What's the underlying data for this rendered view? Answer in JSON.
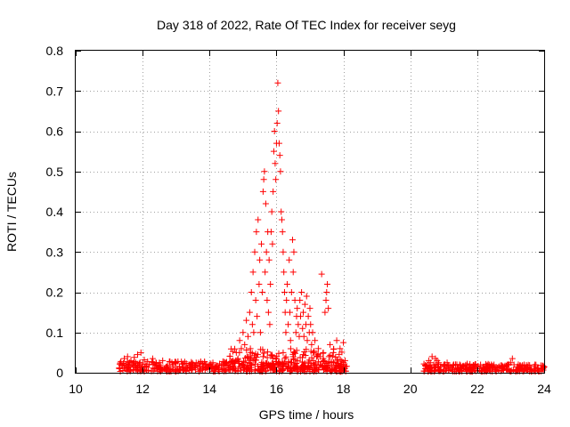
{
  "chart_data": {
    "type": "scatter",
    "title": "Day 318 of 2022, Rate Of TEC Index for receiver seyg",
    "xlabel": "GPS time / hours",
    "ylabel": "ROTI / TECUs",
    "xlim": [
      10,
      24
    ],
    "ylim": [
      0,
      0.8
    ],
    "xticks": [
      10,
      12,
      14,
      16,
      18,
      20,
      22,
      24
    ],
    "xtick_labels": [
      "10",
      "12",
      "14",
      "16",
      "18",
      "20",
      "22",
      "24"
    ],
    "yticks": [
      0,
      0.1,
      0.2,
      0.3,
      0.4,
      0.5,
      0.6,
      0.7,
      0.8
    ],
    "ytick_labels": [
      "0",
      "0.1",
      "0.2",
      "0.3",
      "0.4",
      "0.5",
      "0.6",
      "0.7",
      "0.8"
    ],
    "grid": true,
    "marker": "+",
    "color": "#ff0000",
    "series": [
      {
        "name": "ROTI",
        "points": [
          [
            11.3,
            0.012
          ],
          [
            11.35,
            0.028
          ],
          [
            11.4,
            0.018
          ],
          [
            11.45,
            0.035
          ],
          [
            11.5,
            0.022
          ],
          [
            11.55,
            0.04
          ],
          [
            11.6,
            0.015
          ],
          [
            11.65,
            0.03
          ],
          [
            11.7,
            0.02
          ],
          [
            11.75,
            0.038
          ],
          [
            11.8,
            0.025
          ],
          [
            11.85,
            0.045
          ],
          [
            11.9,
            0.018
          ],
          [
            11.95,
            0.05
          ],
          [
            12.0,
            0.022
          ],
          [
            12.05,
            0.032
          ],
          [
            12.1,
            0.015
          ],
          [
            12.15,
            0.028
          ],
          [
            12.2,
            0.02
          ],
          [
            12.3,
            0.035
          ],
          [
            12.4,
            0.018
          ],
          [
            12.5,
            0.025
          ],
          [
            12.6,
            0.03
          ],
          [
            12.7,
            0.015
          ],
          [
            12.8,
            0.028
          ],
          [
            12.9,
            0.02
          ],
          [
            13.0,
            0.025
          ],
          [
            13.1,
            0.015
          ],
          [
            13.2,
            0.022
          ],
          [
            13.3,
            0.012
          ],
          [
            13.4,
            0.02
          ],
          [
            13.5,
            0.018
          ],
          [
            13.6,
            0.025
          ],
          [
            13.7,
            0.015
          ],
          [
            13.8,
            0.022
          ],
          [
            13.9,
            0.012
          ],
          [
            14.0,
            0.02
          ],
          [
            14.1,
            0.025
          ],
          [
            14.2,
            0.015
          ],
          [
            14.3,
            0.022
          ],
          [
            14.4,
            0.028
          ],
          [
            14.5,
            0.018
          ],
          [
            14.6,
            0.025
          ],
          [
            14.7,
            0.03
          ],
          [
            14.8,
            0.05
          ],
          [
            14.85,
            0.035
          ],
          [
            14.9,
            0.08
          ],
          [
            14.95,
            0.06
          ],
          [
            15.0,
            0.1
          ],
          [
            15.05,
            0.07
          ],
          [
            15.1,
            0.13
          ],
          [
            15.12,
            0.04
          ],
          [
            15.15,
            0.09
          ],
          [
            15.2,
            0.15
          ],
          [
            15.22,
            0.06
          ],
          [
            15.25,
            0.2
          ],
          [
            15.28,
            0.12
          ],
          [
            15.3,
            0.25
          ],
          [
            15.32,
            0.1
          ],
          [
            15.35,
            0.3
          ],
          [
            15.38,
            0.18
          ],
          [
            15.4,
            0.35
          ],
          [
            15.42,
            0.14
          ],
          [
            15.45,
            0.38
          ],
          [
            15.48,
            0.22
          ],
          [
            15.5,
            0.28
          ],
          [
            15.52,
            0.1
          ],
          [
            15.55,
            0.32
          ],
          [
            15.58,
            0.2
          ],
          [
            15.6,
            0.45
          ],
          [
            15.62,
            0.48
          ],
          [
            15.64,
            0.5
          ],
          [
            15.66,
            0.25
          ],
          [
            15.68,
            0.42
          ],
          [
            15.7,
            0.3
          ],
          [
            15.72,
            0.18
          ],
          [
            15.74,
            0.35
          ],
          [
            15.76,
            0.15
          ],
          [
            15.78,
            0.28
          ],
          [
            15.8,
            0.12
          ],
          [
            15.82,
            0.22
          ],
          [
            15.84,
            0.35
          ],
          [
            15.86,
            0.4
          ],
          [
            15.88,
            0.32
          ],
          [
            15.9,
            0.45
          ],
          [
            15.92,
            0.55
          ],
          [
            15.94,
            0.6
          ],
          [
            15.96,
            0.52
          ],
          [
            15.98,
            0.48
          ],
          [
            16.0,
            0.57
          ],
          [
            16.02,
            0.62
          ],
          [
            16.04,
            0.72
          ],
          [
            16.06,
            0.65
          ],
          [
            16.08,
            0.57
          ],
          [
            16.1,
            0.54
          ],
          [
            16.12,
            0.5
          ],
          [
            16.14,
            0.4
          ],
          [
            16.16,
            0.38
          ],
          [
            16.18,
            0.35
          ],
          [
            16.2,
            0.3
          ],
          [
            16.22,
            0.25
          ],
          [
            16.24,
            0.2
          ],
          [
            16.26,
            0.15
          ],
          [
            16.28,
            0.1
          ],
          [
            16.3,
            0.18
          ],
          [
            16.32,
            0.22
          ],
          [
            16.35,
            0.12
          ],
          [
            16.38,
            0.28
          ],
          [
            16.4,
            0.15
          ],
          [
            16.42,
            0.08
          ],
          [
            16.45,
            0.2
          ],
          [
            16.48,
            0.33
          ],
          [
            16.5,
            0.25
          ],
          [
            16.52,
            0.3
          ],
          [
            16.55,
            0.18
          ],
          [
            16.58,
            0.1
          ],
          [
            16.6,
            0.14
          ],
          [
            16.62,
            0.16
          ],
          [
            16.65,
            0.12
          ],
          [
            16.68,
            0.09
          ],
          [
            16.7,
            0.18
          ],
          [
            16.72,
            0.14
          ],
          [
            16.75,
            0.2
          ],
          [
            16.78,
            0.11
          ],
          [
            16.8,
            0.15
          ],
          [
            16.82,
            0.09
          ],
          [
            16.85,
            0.17
          ],
          [
            16.88,
            0.12
          ],
          [
            16.9,
            0.19
          ],
          [
            16.92,
            0.08
          ],
          [
            16.95,
            0.14
          ],
          [
            16.98,
            0.1
          ],
          [
            17.0,
            0.16
          ],
          [
            17.02,
            0.12
          ],
          [
            17.05,
            0.07
          ],
          [
            17.08,
            0.1
          ],
          [
            17.1,
            0.05
          ],
          [
            17.15,
            0.08
          ],
          [
            17.2,
            0.04
          ],
          [
            17.25,
            0.06
          ],
          [
            17.3,
            0.04
          ],
          [
            17.35,
            0.245
          ],
          [
            17.4,
            0.05
          ],
          [
            17.45,
            0.15
          ],
          [
            17.48,
            0.18
          ],
          [
            17.5,
            0.2
          ],
          [
            17.52,
            0.22
          ],
          [
            17.55,
            0.16
          ],
          [
            17.6,
            0.07
          ],
          [
            17.7,
            0.05
          ],
          [
            17.8,
            0.08
          ],
          [
            17.9,
            0.06
          ],
          [
            18.0,
            0.075
          ],
          [
            15.0,
            0.02
          ],
          [
            15.3,
            0.03
          ],
          [
            15.6,
            0.04
          ],
          [
            15.9,
            0.035
          ],
          [
            16.2,
            0.05
          ],
          [
            16.5,
            0.04
          ],
          [
            16.8,
            0.045
          ],
          [
            17.1,
            0.03
          ],
          [
            17.4,
            0.035
          ],
          [
            17.7,
            0.025
          ],
          [
            18.0,
            0.02
          ],
          [
            18.05,
            0.03
          ],
          [
            20.45,
            0.01
          ],
          [
            20.5,
            0.02
          ],
          [
            20.55,
            0.03
          ],
          [
            20.6,
            0.025
          ],
          [
            20.65,
            0.04
          ],
          [
            20.7,
            0.02
          ],
          [
            20.75,
            0.035
          ],
          [
            20.8,
            0.03
          ],
          [
            20.85,
            0.025
          ],
          [
            20.9,
            0.015
          ],
          [
            21.0,
            0.02
          ],
          [
            21.1,
            0.025
          ],
          [
            21.2,
            0.015
          ],
          [
            21.3,
            0.02
          ],
          [
            21.4,
            0.012
          ],
          [
            21.5,
            0.018
          ],
          [
            21.6,
            0.015
          ],
          [
            21.7,
            0.022
          ],
          [
            21.8,
            0.012
          ],
          [
            21.9,
            0.018
          ],
          [
            22.0,
            0.015
          ],
          [
            22.1,
            0.02
          ],
          [
            22.2,
            0.012
          ],
          [
            22.3,
            0.018
          ],
          [
            22.4,
            0.015
          ],
          [
            22.5,
            0.02
          ],
          [
            22.6,
            0.012
          ],
          [
            22.7,
            0.018
          ],
          [
            22.8,
            0.015
          ],
          [
            22.9,
            0.02
          ],
          [
            23.0,
            0.025
          ],
          [
            23.05,
            0.035
          ],
          [
            23.1,
            0.02
          ],
          [
            23.2,
            0.015
          ],
          [
            23.3,
            0.012
          ],
          [
            23.4,
            0.018
          ],
          [
            23.5,
            0.015
          ],
          [
            23.6,
            0.01
          ],
          [
            23.7,
            0.015
          ],
          [
            23.8,
            0.012
          ],
          [
            23.9,
            0.018
          ],
          [
            24.0,
            0.015
          ]
        ],
        "dense_bands": [
          {
            "x_start": 11.3,
            "x_end": 18.1,
            "y_min": 0.003,
            "y_max": 0.028,
            "count": 420
          },
          {
            "x_start": 14.6,
            "x_end": 18.0,
            "y_min": 0.01,
            "y_max": 0.06,
            "count": 140
          },
          {
            "x_start": 20.4,
            "x_end": 24.0,
            "y_min": 0.003,
            "y_max": 0.022,
            "count": 240
          }
        ]
      }
    ]
  }
}
